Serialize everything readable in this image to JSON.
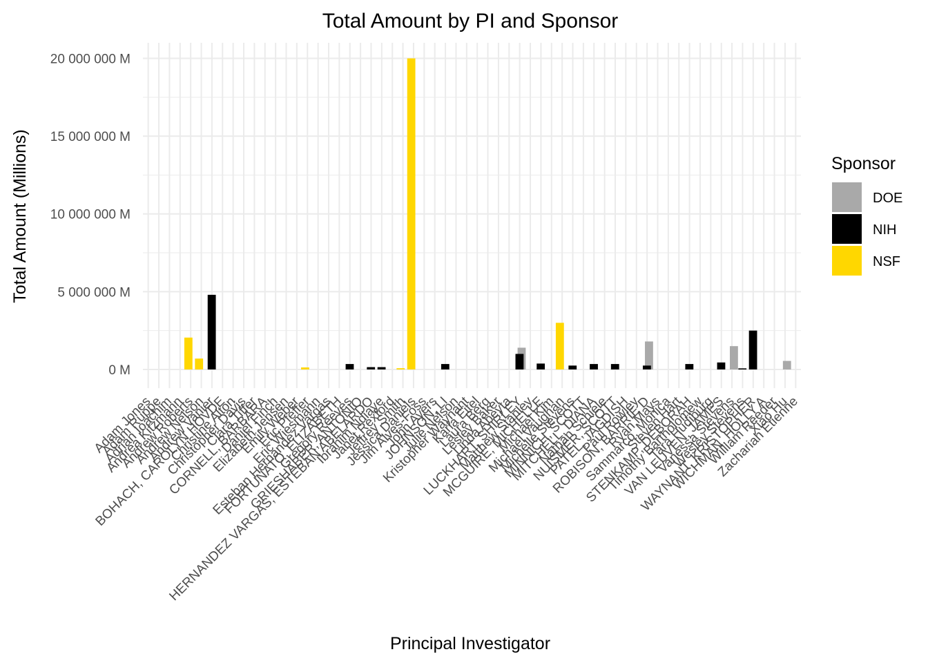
{
  "colors": {
    "DOE": "#a9a9a9",
    "NIH": "#000000",
    "NSF": "#ffd700",
    "grid": "#ebebeb"
  },
  "chart_data": {
    "type": "bar",
    "title": "Total Amount by PI and Sponsor",
    "xlabel": "Principal Investigator",
    "ylabel": "Total Amount (Millions)",
    "ylim": [
      -1200000,
      21000000
    ],
    "yticks": [
      0,
      5000000,
      10000000,
      15000000,
      20000000
    ],
    "ytick_labels": [
      "0 M",
      "5 000 000 M",
      "10 000 000 M",
      "15 000 000 M",
      "20 000 000 M"
    ],
    "grid": true,
    "legend": {
      "title": "Sponsor",
      "position": "right",
      "entries": [
        "DOE",
        "NIH",
        "NSF"
      ]
    },
    "categories": [
      "Adam Jones",
      "Adam Ruppe",
      "Adrian Ioachim",
      "Andrea Kitzmann",
      "Andrew Roberts",
      "Andrew Nelson",
      "Andrew Vanier",
      "BOHACH, CAROLYN HOVDE",
      "Christine Alton",
      "Christopher Davis",
      "Clara Tiffer",
      "CORNELL, BARBARA",
      "Daniel Finch",
      "Elizabeth Jensen",
      "Emily Weber",
      "Eric Pfeffer",
      "Eric Wiesmann",
      "Esteban Hernandez Vargas",
      "FORTUNATO, ELIZABETH",
      "Gregory Reeves",
      "GRIESHABER, ANTONIO",
      "HERNANDEZ VARGAS, ESTEBAN ABELARDO",
      "Ibrahim Ndiaye",
      "Janet Rexford",
      "Jeffrey Smith",
      "Jessica Daniels",
      "Jim Alves-Foss",
      "John Ayers",
      "JOHNSON, LI",
      "Julie Nelson",
      "Kristopher Waynant",
      "Karla Eitel",
      "Laura Berg",
      "Lesley Baker",
      "Linda Abeyta",
      "LUCKHART, SHIRLEY",
      "Matthew Stanley",
      "MCGUIRE, MICHELLE",
      "Michael Kim",
      "Michael Vaughan",
      "Michelle Stevens",
      "MINNICH, SCOTT",
      "MITCHELL, DIANA",
      "Nathan Schiele",
      "NUISMER, SCOTT",
      "PATEL, JAGDISH",
      "Paul Rowley",
      "ROBISON, BARRIE D",
      "Ryan Mays",
      "Sammarco, Monica",
      "Steven Hart",
      "STENKAMP, DEBORAH",
      "Timothy Bartholomew",
      "Tara Hudiburg",
      "VAN LEUVEN, JAMES",
      "Vanessa Stevens",
      "Wesley Stevens",
      "WAYNANT, KRISTOPHER",
      "WICHMAN, HOLLY A",
      "William Reeder",
      "Xiao Hu",
      "Zachariah Etienne"
    ],
    "series": [
      {
        "name": "DOE",
        "values": [
          0,
          0,
          0,
          0,
          0,
          0,
          0,
          0,
          0,
          0,
          0,
          0,
          0,
          0,
          0,
          0,
          0,
          0,
          0,
          0,
          0,
          0,
          0,
          0,
          0,
          0,
          0,
          0,
          0,
          0,
          0,
          0,
          0,
          0,
          0,
          0,
          1400000,
          0,
          0,
          0,
          0,
          0,
          0,
          0,
          0,
          0,
          0,
          0,
          1800000,
          0,
          0,
          0,
          0,
          0,
          0,
          0,
          1500000,
          0,
          0,
          0,
          0,
          550000
        ]
      },
      {
        "name": "NIH",
        "values": [
          0,
          0,
          0,
          0,
          0,
          0,
          4800000,
          0,
          0,
          0,
          0,
          0,
          0,
          0,
          0,
          0,
          0,
          0,
          0,
          350000,
          0,
          150000,
          150000,
          0,
          0,
          0,
          0,
          0,
          350000,
          0,
          0,
          0,
          0,
          0,
          0,
          1000000,
          0,
          380000,
          0,
          0,
          250000,
          0,
          350000,
          0,
          350000,
          0,
          0,
          250000,
          0,
          0,
          0,
          350000,
          0,
          0,
          450000,
          0,
          70000,
          2500000,
          0,
          0,
          0,
          0
        ]
      },
      {
        "name": "NSF",
        "values": [
          0,
          0,
          0,
          2050000,
          700000,
          0,
          0,
          0,
          0,
          0,
          0,
          0,
          0,
          0,
          130000,
          0,
          0,
          0,
          0,
          0,
          0,
          0,
          0,
          80000,
          20000000,
          0,
          0,
          0,
          0,
          0,
          0,
          0,
          0,
          0,
          0,
          0,
          0,
          0,
          3000000,
          0,
          0,
          0,
          0,
          0,
          0,
          0,
          0,
          0,
          0,
          0,
          0,
          0,
          0,
          0,
          0,
          0,
          0,
          0,
          0,
          0,
          0,
          0
        ]
      }
    ]
  }
}
